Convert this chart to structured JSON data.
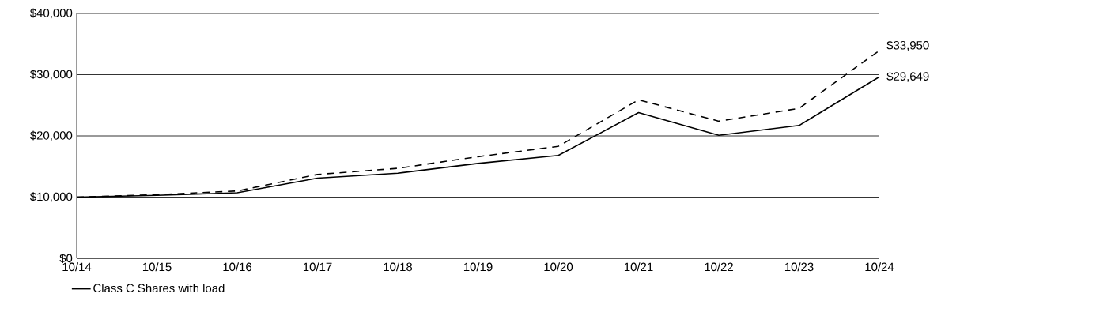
{
  "chart_data": {
    "type": "line",
    "categories": [
      "10/14",
      "10/15",
      "10/16",
      "10/17",
      "10/18",
      "10/19",
      "10/20",
      "10/21",
      "10/22",
      "10/23",
      "10/24"
    ],
    "series": [
      {
        "name": "Class C Shares with load",
        "color": "#000000",
        "line_style": "solid",
        "values": [
          10000,
          10300,
          10700,
          13100,
          13900,
          15500,
          16800,
          23800,
          20100,
          21700,
          29649
        ],
        "value_labels": [
          null,
          null,
          null,
          null,
          null,
          null,
          null,
          null,
          null,
          null,
          "$29,649"
        ]
      },
      {
        "color": "#000000",
        "line_style": "dashed",
        "values": [
          10000,
          10400,
          11000,
          13700,
          14700,
          16600,
          18300,
          25900,
          22400,
          24500,
          33950
        ],
        "value_labels": [
          null,
          null,
          null,
          null,
          null,
          null,
          null,
          null,
          null,
          null,
          "$33,950"
        ]
      }
    ],
    "ylim": [
      0,
      40000
    ],
    "yticks": [
      {
        "value": 0,
        "label": "$0"
      },
      {
        "value": 10000,
        "label": "$10,000"
      },
      {
        "value": 20000,
        "label": "$20,000"
      },
      {
        "value": 30000,
        "label": "$30,000"
      },
      {
        "value": 40000,
        "label": "$40,000"
      }
    ],
    "grid": "y",
    "legend": "bottom left",
    "marker": "none"
  }
}
